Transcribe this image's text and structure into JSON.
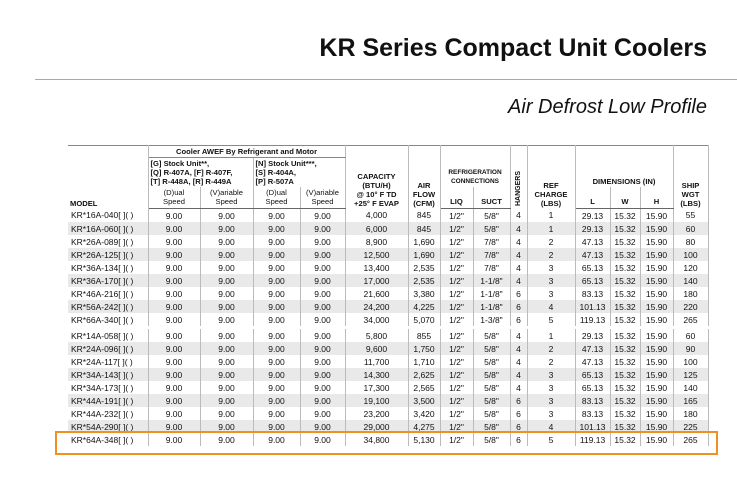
{
  "header": {
    "title": "KR Series Compact Unit Coolers",
    "subtitle": "Air Defrost Low Profile"
  },
  "table": {
    "head": {
      "model": "MODEL",
      "awef": "Cooler AWEF By Refrigerant and Motor",
      "stock_g": [
        "[G] Stock Unit**,",
        "[Q] R-407A, [F] R-407F,",
        "[T] R-448A, [R] R-449A"
      ],
      "stock_n": [
        "[N] Stock Unit***,",
        "[S] R-404A,",
        "[P] R-507A"
      ],
      "dual": [
        "(D)ual",
        "Speed"
      ],
      "variable": [
        "(V)ariable",
        "Speed"
      ],
      "capacity": [
        "CAPACITY",
        "(BTU/H)",
        "@ 10° F TD",
        "+25° F EVAP"
      ],
      "airflow": [
        "AIR",
        "FLOW",
        "(CFM)"
      ],
      "refrigeration": [
        "REFRIGERATION",
        "CONNECTIONS"
      ],
      "liq": "LIQ",
      "suct": "SUCT",
      "hangers": "HANGERS",
      "charge": [
        "REF",
        "CHARGE",
        "(LBS)"
      ],
      "dimensions": "DIMENSIONS (IN)",
      "l": "L",
      "w": "W",
      "h": "H",
      "ship": [
        "SHIP",
        "WGT",
        "(LBS)"
      ]
    },
    "groups": [
      [
        [
          "KR*16A-040[ ]( )",
          "9.00",
          "9.00",
          "9.00",
          "9.00",
          "4,000",
          "845",
          "1/2\"",
          "5/8\"",
          "4",
          "1",
          "29.13",
          "15.32",
          "15.90",
          "55"
        ],
        [
          "KR*16A-060[ ]( )",
          "9.00",
          "9.00",
          "9.00",
          "9.00",
          "6,000",
          "845",
          "1/2\"",
          "5/8\"",
          "4",
          "1",
          "29.13",
          "15.32",
          "15.90",
          "60"
        ],
        [
          "KR*26A-089[ ]( )",
          "9.00",
          "9.00",
          "9.00",
          "9.00",
          "8,900",
          "1,690",
          "1/2\"",
          "7/8\"",
          "4",
          "2",
          "47.13",
          "15.32",
          "15.90",
          "80"
        ],
        [
          "KR*26A-125[ ]( )",
          "9.00",
          "9.00",
          "9.00",
          "9.00",
          "12,500",
          "1,690",
          "1/2\"",
          "7/8\"",
          "4",
          "2",
          "47.13",
          "15.32",
          "15.90",
          "100"
        ],
        [
          "KR*36A-134[ ]( )",
          "9.00",
          "9.00",
          "9.00",
          "9.00",
          "13,400",
          "2,535",
          "1/2\"",
          "7/8\"",
          "4",
          "3",
          "65.13",
          "15.32",
          "15.90",
          "120"
        ],
        [
          "KR*36A-170[ ]( )",
          "9.00",
          "9.00",
          "9.00",
          "9.00",
          "17,000",
          "2,535",
          "1/2\"",
          "1-1/8\"",
          "4",
          "3",
          "65.13",
          "15.32",
          "15.90",
          "140"
        ],
        [
          "KR*46A-216[ ]( )",
          "9.00",
          "9.00",
          "9.00",
          "9.00",
          "21,600",
          "3,380",
          "1/2\"",
          "1-1/8\"",
          "6",
          "3",
          "83.13",
          "15.32",
          "15.90",
          "180"
        ],
        [
          "KR*56A-242[ ]( )",
          "9.00",
          "9.00",
          "9.00",
          "9.00",
          "24,200",
          "4,225",
          "1/2\"",
          "1-1/8\"",
          "6",
          "4",
          "101.13",
          "15.32",
          "15.90",
          "220"
        ],
        [
          "KR*66A-340[ ]( )",
          "9.00",
          "9.00",
          "9.00",
          "9.00",
          "34,000",
          "5,070",
          "1/2\"",
          "1-3/8\"",
          "6",
          "5",
          "119.13",
          "15.32",
          "15.90",
          "265"
        ]
      ],
      [
        [
          "KR*14A-058[ ]( )",
          "9.00",
          "9.00",
          "9.00",
          "9.00",
          "5,800",
          "855",
          "1/2\"",
          "5/8\"",
          "4",
          "1",
          "29.13",
          "15.32",
          "15.90",
          "60"
        ],
        [
          "KR*24A-096[ ]( )",
          "9.00",
          "9.00",
          "9.00",
          "9.00",
          "9,600",
          "1,750",
          "1/2\"",
          "5/8\"",
          "4",
          "2",
          "47.13",
          "15.32",
          "15.90",
          "90"
        ],
        [
          "KR*24A-117[ ]( )",
          "9.00",
          "9.00",
          "9.00",
          "9.00",
          "11,700",
          "1,710",
          "1/2\"",
          "5/8\"",
          "4",
          "2",
          "47.13",
          "15.32",
          "15.90",
          "100"
        ],
        [
          "KR*34A-143[ ]( )",
          "9.00",
          "9.00",
          "9.00",
          "9.00",
          "14,300",
          "2,625",
          "1/2\"",
          "5/8\"",
          "4",
          "3",
          "65.13",
          "15.32",
          "15.90",
          "125"
        ],
        [
          "KR*34A-173[ ]( )",
          "9.00",
          "9.00",
          "9.00",
          "9.00",
          "17,300",
          "2,565",
          "1/2\"",
          "5/8\"",
          "4",
          "3",
          "65.13",
          "15.32",
          "15.90",
          "140"
        ],
        [
          "KR*44A-191[ ]( )",
          "9.00",
          "9.00",
          "9.00",
          "9.00",
          "19,100",
          "3,500",
          "1/2\"",
          "5/8\"",
          "6",
          "3",
          "83.13",
          "15.32",
          "15.90",
          "165"
        ],
        [
          "KR*44A-232[ ]( )",
          "9.00",
          "9.00",
          "9.00",
          "9.00",
          "23,200",
          "3,420",
          "1/2\"",
          "5/8\"",
          "6",
          "3",
          "83.13",
          "15.32",
          "15.90",
          "180"
        ],
        [
          "KR*54A-290[ ]( )",
          "9.00",
          "9.00",
          "9.00",
          "9.00",
          "29,000",
          "4,275",
          "1/2\"",
          "5/8\"",
          "6",
          "4",
          "101.13",
          "15.32",
          "15.90",
          "225"
        ],
        [
          "KR*64A-348[ ]( )",
          "9.00",
          "9.00",
          "9.00",
          "9.00",
          "34,800",
          "5,130",
          "1/2\"",
          "5/8\"",
          "6",
          "5",
          "119.13",
          "15.32",
          "15.90",
          "265"
        ]
      ]
    ]
  }
}
